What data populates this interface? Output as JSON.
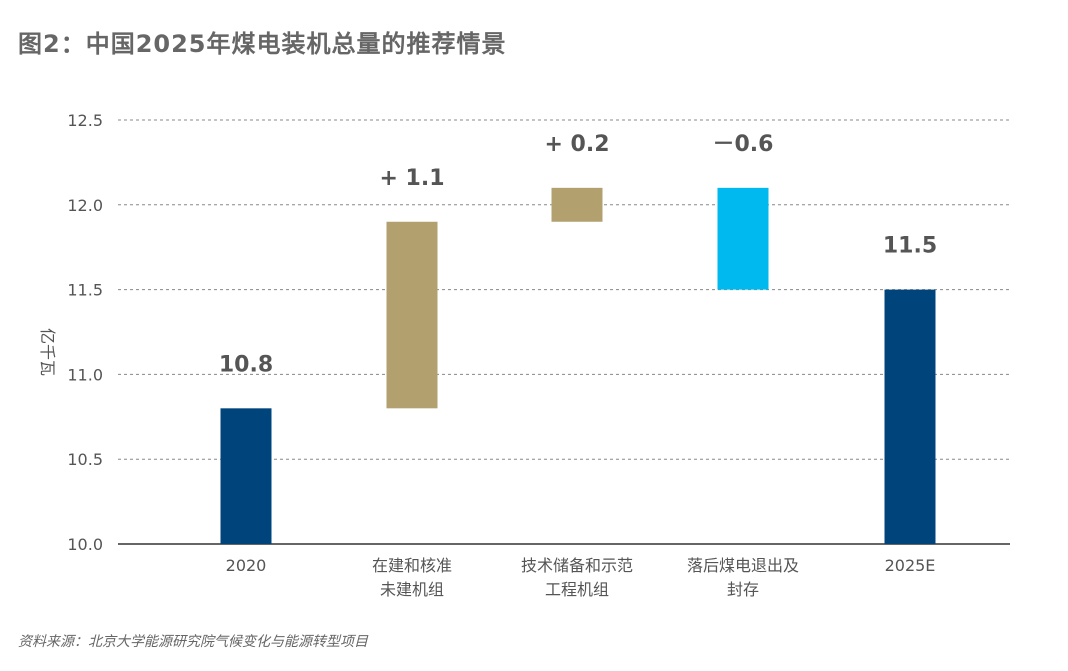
{
  "title": "图2：中国2025年煤电装机总量的推荐情景",
  "source": "资料来源：北京大学能源研究院气候变化与能源转型项目",
  "chart_data": {
    "type": "waterfall",
    "ylabel": "亿千瓦",
    "ylim": [
      10.0,
      12.5
    ],
    "yticks": [
      10.0,
      10.5,
      11.0,
      11.5,
      12.0,
      12.5
    ],
    "grid": true,
    "categories": [
      [
        "2020"
      ],
      [
        "在建和核准",
        "未建机组"
      ],
      [
        "技术储备和示范",
        "工程机组"
      ],
      [
        "落后煤电退出及",
        "封存"
      ],
      [
        "2025E"
      ]
    ],
    "values": [
      {
        "start": 10.0,
        "end": 10.8,
        "label": "10.8",
        "color": "#00447c"
      },
      {
        "start": 10.8,
        "end": 11.9,
        "label": "+ 1.1",
        "color": "#b2a16f"
      },
      {
        "start": 11.9,
        "end": 12.1,
        "label": "+ 0.2",
        "color": "#b2a16f"
      },
      {
        "start": 12.1,
        "end": 11.5,
        "label": "－0.6",
        "color": "#00b9ee"
      },
      {
        "start": 10.0,
        "end": 11.5,
        "label": "11.5",
        "color": "#00447c"
      }
    ]
  }
}
